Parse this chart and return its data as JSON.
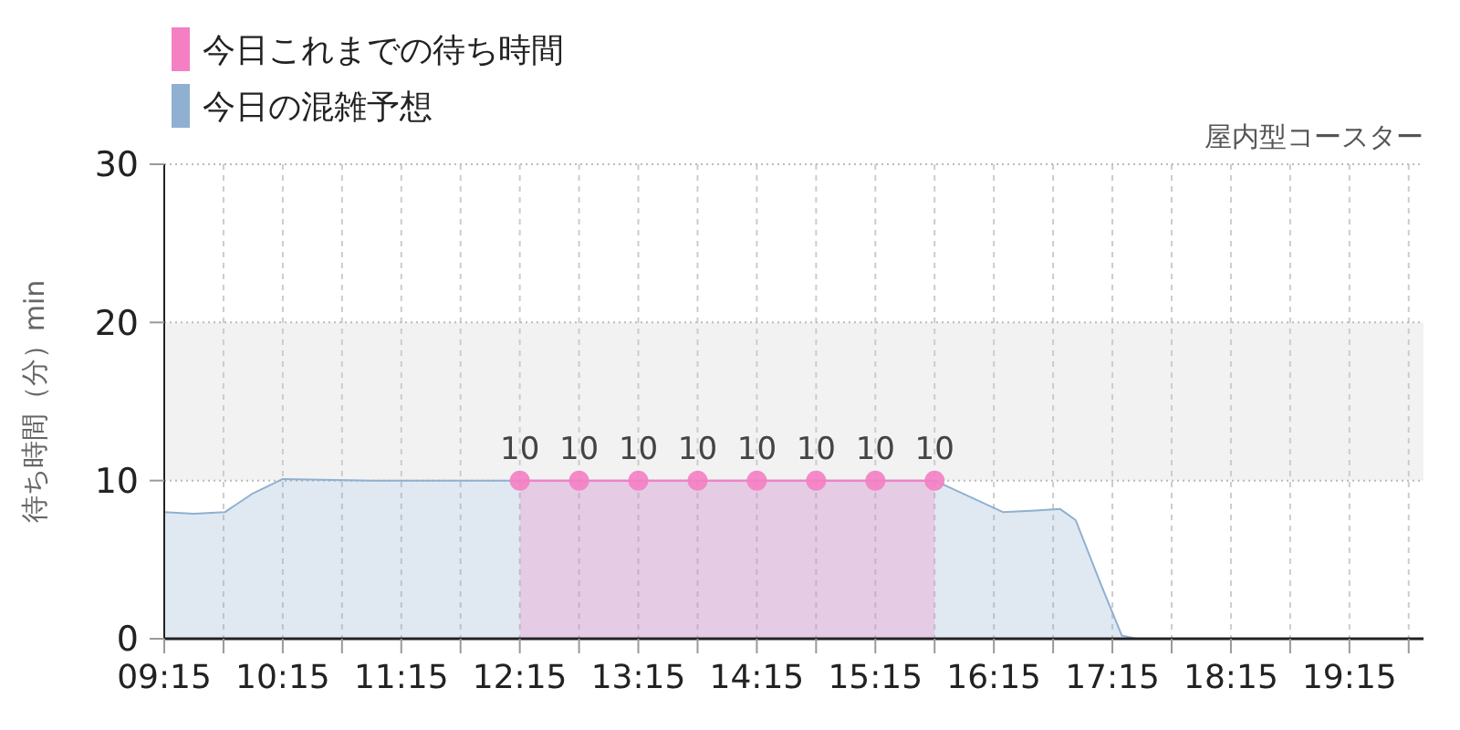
{
  "chart_data": {
    "type": "area",
    "title": "屋内型コースター",
    "ylabel": "待ち時間（分）min",
    "xlim": [
      9.25,
      19.875
    ],
    "ylim": [
      0,
      30
    ],
    "yticks": [
      0,
      10,
      20,
      30
    ],
    "xticks": [
      {
        "value": 9.25,
        "label": "09:15"
      },
      {
        "value": 9.75,
        "label": null
      },
      {
        "value": 10.25,
        "label": "10:15"
      },
      {
        "value": 10.75,
        "label": null
      },
      {
        "value": 11.25,
        "label": "11:15"
      },
      {
        "value": 11.75,
        "label": null
      },
      {
        "value": 12.25,
        "label": "12:15"
      },
      {
        "value": 12.75,
        "label": null
      },
      {
        "value": 13.25,
        "label": "13:15"
      },
      {
        "value": 13.75,
        "label": null
      },
      {
        "value": 14.25,
        "label": "14:15"
      },
      {
        "value": 14.75,
        "label": null
      },
      {
        "value": 15.25,
        "label": "15:15"
      },
      {
        "value": 15.75,
        "label": null
      },
      {
        "value": 16.25,
        "label": "16:15"
      },
      {
        "value": 16.75,
        "label": null
      },
      {
        "value": 17.25,
        "label": "17:15"
      },
      {
        "value": 17.75,
        "label": null
      },
      {
        "value": 18.25,
        "label": "18:15"
      },
      {
        "value": 18.75,
        "label": null
      },
      {
        "value": 19.25,
        "label": "19:15"
      },
      {
        "value": 19.75,
        "label": null
      }
    ],
    "grid": true,
    "legend": "top left",
    "bands": [
      {
        "axis": "y",
        "from": 10,
        "to": 20,
        "color": "#f2f2f2"
      }
    ],
    "series": [
      {
        "name": "今日これまでの待ち時間",
        "color": "#f47fc3",
        "marker": "circle",
        "data_labels": true,
        "x": [
          12.25,
          12.75,
          13.25,
          13.75,
          14.25,
          14.75,
          15.25,
          15.75
        ],
        "values": [
          10,
          10,
          10,
          10,
          10,
          10,
          10,
          10
        ]
      },
      {
        "name": "今日の混雑予想",
        "color": "#8fb0d0",
        "marker": "none",
        "x": [
          9.25,
          9.5,
          9.76,
          10.0,
          10.25,
          11.0,
          12.0,
          13.0,
          14.0,
          15.0,
          15.75,
          16.33,
          16.6,
          16.81,
          16.94,
          17.15,
          17.33,
          17.45,
          18.0,
          19.0,
          19.875
        ],
        "values": [
          8,
          7.9,
          8,
          9.2,
          10.1,
          10,
          10,
          10,
          10,
          10,
          10,
          8,
          8.1,
          8.2,
          7.5,
          3.5,
          0.2,
          0,
          0,
          0,
          0
        ]
      }
    ]
  }
}
